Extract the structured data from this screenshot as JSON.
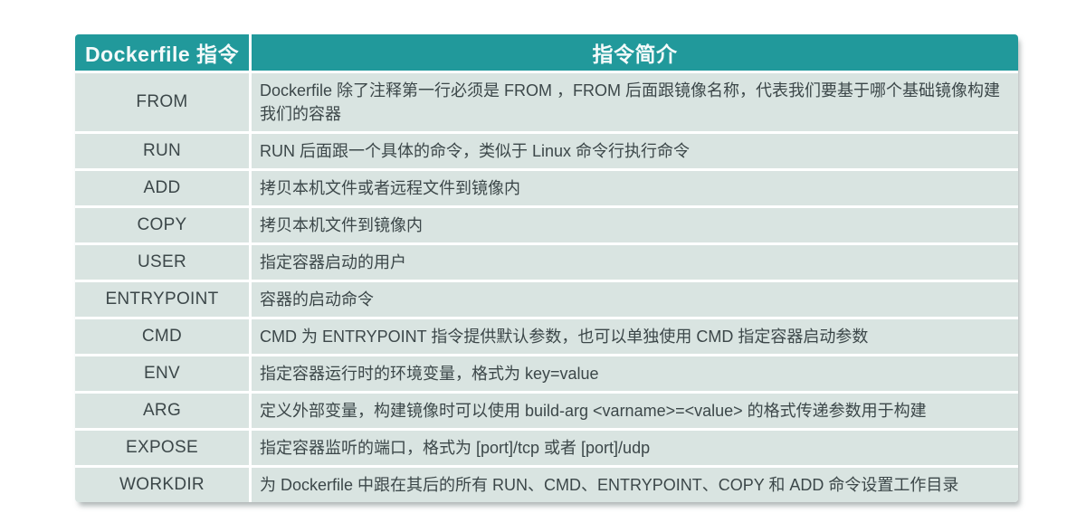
{
  "table": {
    "title_col_instruction": "Dockerfile 指令",
    "title_col_description": "指令简介",
    "rows": [
      {
        "cmd": "FROM",
        "desc": "Dockerfile 除了注释第一行必须是 FROM ，FROM 后面跟镜像名称，代表我们要基于哪个基础镜像构建我们的容器"
      },
      {
        "cmd": "RUN",
        "desc": "RUN 后面跟一个具体的命令，类似于 Linux 命令行执行命令"
      },
      {
        "cmd": "ADD",
        "desc": "拷贝本机文件或者远程文件到镜像内"
      },
      {
        "cmd": "COPY",
        "desc": "拷贝本机文件到镜像内"
      },
      {
        "cmd": "USER",
        "desc": "指定容器启动的用户"
      },
      {
        "cmd": "ENTRYPOINT",
        "desc": "容器的启动命令"
      },
      {
        "cmd": "CMD",
        "desc": "CMD 为 ENTRYPOINT 指令提供默认参数，也可以单独使用 CMD 指定容器启动参数"
      },
      {
        "cmd": "ENV",
        "desc": "指定容器运行时的环境变量，格式为 key=value"
      },
      {
        "cmd": "ARG",
        "desc": "定义外部变量，构建镜像时可以使用 build-arg <varname>=<value> 的格式传递参数用于构建"
      },
      {
        "cmd": "EXPOSE",
        "desc": "指定容器监听的端口，格式为 [port]/tcp 或者 [port]/udp"
      },
      {
        "cmd": "WORKDIR",
        "desc": "为 Dockerfile 中跟在其后的所有 RUN、CMD、ENTRYPOINT、COPY 和 ADD 命令设置工作目录"
      }
    ],
    "colors": {
      "header_bg": "#21999b",
      "header_text": "#f4fafa",
      "row_bg": "#d9e4e1",
      "body_text": "#3c4749"
    }
  }
}
